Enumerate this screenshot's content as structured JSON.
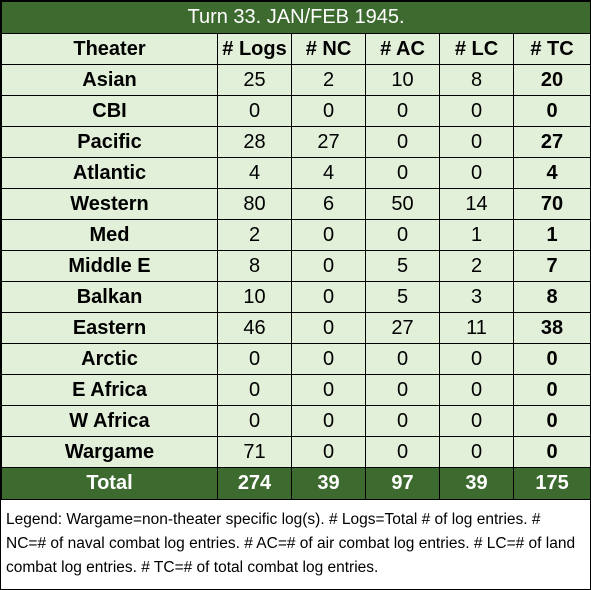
{
  "title": "Turn 33.  JAN/FEB 1945.",
  "headers": [
    "Theater",
    "# Logs",
    "# NC",
    "# AC",
    "# LC",
    "# TC"
  ],
  "rows": [
    {
      "theater": "Asian",
      "logs": "25",
      "nc": "2",
      "ac": "10",
      "lc": "8",
      "tc": "20"
    },
    {
      "theater": "CBI",
      "logs": "0",
      "nc": "0",
      "ac": "0",
      "lc": "0",
      "tc": "0"
    },
    {
      "theater": "Pacific",
      "logs": "28",
      "nc": "27",
      "ac": "0",
      "lc": "0",
      "tc": "27"
    },
    {
      "theater": "Atlantic",
      "logs": "4",
      "nc": "4",
      "ac": "0",
      "lc": "0",
      "tc": "4"
    },
    {
      "theater": "Western",
      "logs": "80",
      "nc": "6",
      "ac": "50",
      "lc": "14",
      "tc": "70"
    },
    {
      "theater": "Med",
      "logs": "2",
      "nc": "0",
      "ac": "0",
      "lc": "1",
      "tc": "1"
    },
    {
      "theater": "Middle E",
      "logs": "8",
      "nc": "0",
      "ac": "5",
      "lc": "2",
      "tc": "7"
    },
    {
      "theater": "Balkan",
      "logs": "10",
      "nc": "0",
      "ac": "5",
      "lc": "3",
      "tc": "8"
    },
    {
      "theater": "Eastern",
      "logs": "46",
      "nc": "0",
      "ac": "27",
      "lc": "11",
      "tc": "38"
    },
    {
      "theater": "Arctic",
      "logs": "0",
      "nc": "0",
      "ac": "0",
      "lc": "0",
      "tc": "0"
    },
    {
      "theater": "E Africa",
      "logs": "0",
      "nc": "0",
      "ac": "0",
      "lc": "0",
      "tc": "0"
    },
    {
      "theater": "W Africa",
      "logs": "0",
      "nc": "0",
      "ac": "0",
      "lc": "0",
      "tc": "0"
    },
    {
      "theater": "Wargame",
      "logs": "71",
      "nc": "0",
      "ac": "0",
      "lc": "0",
      "tc": "0"
    }
  ],
  "total": {
    "theater": "Total",
    "logs": "274",
    "nc": "39",
    "ac": "97",
    "lc": "39",
    "tc": "175"
  },
  "legend": "Legend:  Wargame=non-theater specific log(s).  # Logs=Total # of log entries.  # NC=# of naval combat log entries.  # AC=# of air combat log entries.  # LC=# of land combat log entries.  # TC=# of total combat log entries.",
  "colors": {
    "header_green": "#3d6a2f",
    "cell_light_green": "#e2efd9",
    "text_white": "#ffffff"
  }
}
